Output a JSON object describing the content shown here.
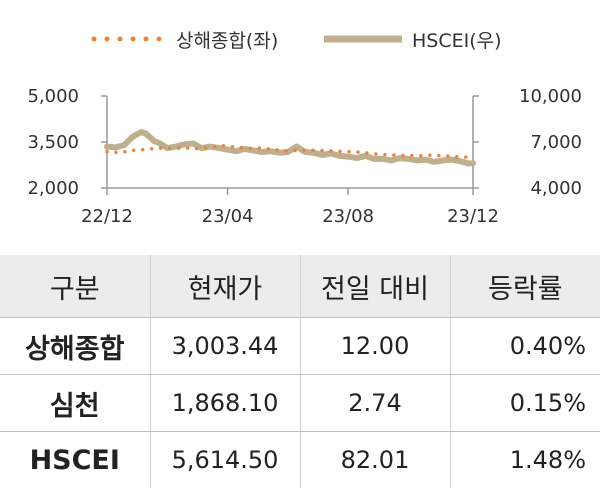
{
  "chart_data": {
    "type": "line",
    "legend_position": "top",
    "grid": false,
    "series": [
      {
        "name": "상해종합(좌)",
        "axis": "left",
        "style": "dotted",
        "color": "#E8843A",
        "points": [
          [
            0,
            3180
          ],
          [
            3,
            3150
          ],
          [
            6,
            3230
          ],
          [
            9,
            3260
          ],
          [
            12,
            3300
          ],
          [
            15,
            3290
          ],
          [
            18,
            3310
          ],
          [
            21,
            3280
          ],
          [
            24,
            3320
          ],
          [
            27,
            3380
          ],
          [
            30,
            3330
          ],
          [
            33,
            3290
          ],
          [
            36,
            3300
          ],
          [
            39,
            3250
          ],
          [
            42,
            3200
          ],
          [
            45,
            3240
          ],
          [
            48,
            3230
          ],
          [
            51,
            3210
          ],
          [
            54,
            3200
          ],
          [
            57,
            3180
          ],
          [
            60,
            3150
          ],
          [
            63,
            3100
          ],
          [
            66,
            3080
          ],
          [
            69,
            3060
          ],
          [
            72,
            3050
          ],
          [
            75,
            3070
          ],
          [
            78,
            3050
          ],
          [
            81,
            3020
          ],
          [
            84,
            3000
          ],
          [
            85,
            3003
          ]
        ]
      },
      {
        "name": "HSCEI(우)",
        "axis": "right",
        "style": "solid",
        "color": "#BFAF8F",
        "points": [
          [
            0,
            6700
          ],
          [
            2,
            6650
          ],
          [
            4,
            6800
          ],
          [
            6,
            7350
          ],
          [
            8,
            7650
          ],
          [
            9,
            7550
          ],
          [
            10,
            7300
          ],
          [
            11,
            7050
          ],
          [
            12,
            6950
          ],
          [
            14,
            6600
          ],
          [
            16,
            6700
          ],
          [
            18,
            6850
          ],
          [
            20,
            6900
          ],
          [
            22,
            6600
          ],
          [
            24,
            6700
          ],
          [
            26,
            6600
          ],
          [
            28,
            6500
          ],
          [
            30,
            6400
          ],
          [
            32,
            6550
          ],
          [
            34,
            6450
          ],
          [
            36,
            6350
          ],
          [
            38,
            6400
          ],
          [
            40,
            6300
          ],
          [
            42,
            6350
          ],
          [
            44,
            6700
          ],
          [
            46,
            6350
          ],
          [
            48,
            6300
          ],
          [
            50,
            6150
          ],
          [
            52,
            6250
          ],
          [
            54,
            6100
          ],
          [
            56,
            6050
          ],
          [
            58,
            5950
          ],
          [
            60,
            6100
          ],
          [
            62,
            5900
          ],
          [
            64,
            5900
          ],
          [
            66,
            5800
          ],
          [
            68,
            5950
          ],
          [
            70,
            5900
          ],
          [
            72,
            5800
          ],
          [
            74,
            5850
          ],
          [
            76,
            5700
          ],
          [
            78,
            5800
          ],
          [
            80,
            5850
          ],
          [
            82,
            5750
          ],
          [
            84,
            5600
          ],
          [
            85,
            5615
          ]
        ]
      }
    ],
    "x_axis": {
      "min": 0,
      "max": 85,
      "ticks": [
        {
          "pos": 0,
          "label": "22/12"
        },
        {
          "pos": 28,
          "label": "23/04"
        },
        {
          "pos": 56,
          "label": "23/08"
        },
        {
          "pos": 85,
          "label": "23/12"
        }
      ]
    },
    "y_left": {
      "min": 2000,
      "max": 5000,
      "ticks": [
        "5,000",
        "3,500",
        "2,000"
      ],
      "tick_values": [
        5000,
        3500,
        2000
      ]
    },
    "y_right": {
      "min": 4000,
      "max": 10000,
      "ticks": [
        "10,000",
        "7,000",
        "4,000"
      ],
      "tick_values": [
        10000,
        7000,
        4000
      ]
    }
  },
  "table": {
    "headers": [
      "구분",
      "현재가",
      "전일 대비",
      "등락률"
    ],
    "rows": [
      {
        "name": "상해종합",
        "price": "3,003.44",
        "change": "12.00",
        "rate": "0.40%"
      },
      {
        "name": "심천",
        "price": "1,868.10",
        "change": "2.74",
        "rate": "0.15%"
      },
      {
        "name": "HSCEI",
        "price": "5,614.50",
        "change": "82.01",
        "rate": "1.48%"
      }
    ]
  }
}
